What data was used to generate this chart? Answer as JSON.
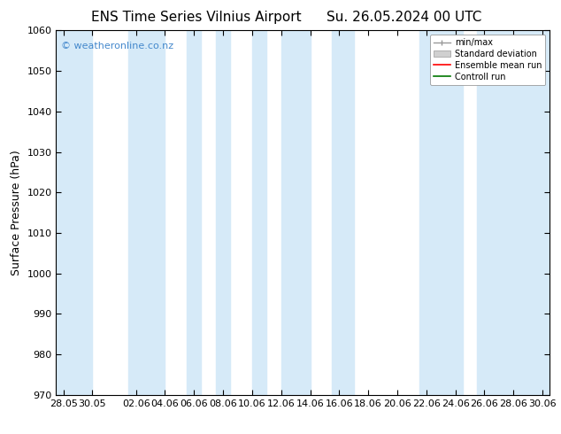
{
  "title_left": "ENS Time Series Vilnius Airport",
  "title_right": "Su. 26.05.2024 00 UTC",
  "ylabel": "Surface Pressure (hPa)",
  "ylim": [
    970,
    1060
  ],
  "yticks": [
    970,
    980,
    990,
    1000,
    1010,
    1020,
    1030,
    1040,
    1050,
    1060
  ],
  "xtick_labels": [
    "28.05",
    "30.05",
    "02.06",
    "04.06",
    "06.06",
    "08.06",
    "10.06",
    "12.06",
    "14.06",
    "16.06",
    "18.06",
    "20.06",
    "22.06",
    "24.06",
    "26.06",
    "28.06",
    "30.06"
  ],
  "xtick_pos": [
    0,
    2,
    5,
    7,
    9,
    11,
    13,
    15,
    17,
    19,
    21,
    23,
    25,
    27,
    29,
    31,
    33
  ],
  "watermark": "© weatheronline.co.nz",
  "watermark_color": "#4488cc",
  "background_color": "#ffffff",
  "plot_bg_color": "#ffffff",
  "shaded_band_color": "#d6eaf8",
  "shaded_band_alpha": 1.0,
  "legend_labels": [
    "min/max",
    "Standard deviation",
    "Ensemble mean run",
    "Controll run"
  ],
  "legend_colors": [
    "#aaaaaa",
    "#cccccc",
    "#ff0000",
    "#008800"
  ],
  "title_fontsize": 11,
  "tick_fontsize": 8,
  "ylabel_fontsize": 9,
  "band_ranges": [
    [
      -0.5,
      2.0
    ],
    [
      4.5,
      7.0
    ],
    [
      8.5,
      9.5
    ],
    [
      10.5,
      11.5
    ],
    [
      13.0,
      14.0
    ],
    [
      15.0,
      17.0
    ],
    [
      18.5,
      20.0
    ],
    [
      24.5,
      27.5
    ],
    [
      28.5,
      33.5
    ]
  ],
  "x_min": -0.5,
  "x_max": 33.5
}
